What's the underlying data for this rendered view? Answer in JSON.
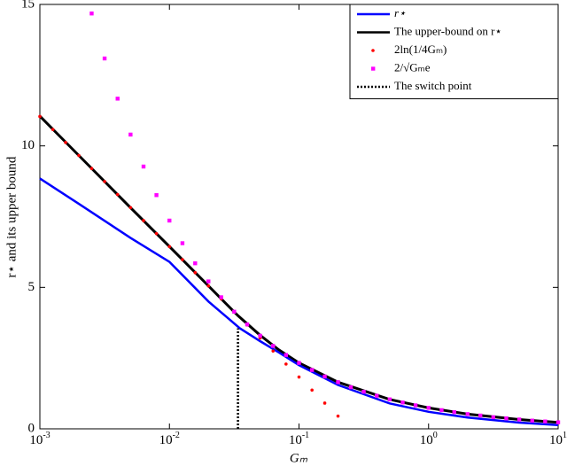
{
  "chart_data": {
    "type": "line",
    "xlabel": "Gₘ",
    "ylabel": "r⋆ and its upper bound",
    "xscale": "log",
    "xlim": [
      0.001,
      10
    ],
    "ylim": [
      0,
      15
    ],
    "xticks": [
      {
        "value": 0.001,
        "label": "10^-3"
      },
      {
        "value": 0.01,
        "label": "10^-2"
      },
      {
        "value": 0.1,
        "label": "10^-1"
      },
      {
        "value": 1,
        "label": "10^0"
      },
      {
        "value": 10,
        "label": "10^1"
      }
    ],
    "yticks": [
      0,
      5,
      10,
      15
    ],
    "legend": "upper right",
    "series": [
      {
        "name": "r⋆",
        "color": "#0000ff",
        "style": "line",
        "x": [
          0.001,
          0.002,
          0.005,
          0.01,
          0.02,
          0.035,
          0.05,
          0.07,
          0.1,
          0.2,
          0.5,
          1,
          2,
          5,
          10
        ],
        "values": [
          8.85,
          7.95,
          6.75,
          5.9,
          4.5,
          3.55,
          3.1,
          2.7,
          2.25,
          1.55,
          0.9,
          0.6,
          0.4,
          0.22,
          0.13
        ]
      },
      {
        "name": "The upper-bound on r⋆",
        "color": "#000000",
        "style": "line",
        "x": [
          0.001,
          0.002,
          0.005,
          0.01,
          0.02,
          0.0338,
          0.05,
          0.07,
          0.1,
          0.2,
          0.5,
          1,
          2,
          5,
          10
        ],
        "values": [
          11.05,
          9.66,
          7.82,
          6.44,
          5.05,
          4.0,
          3.31,
          2.79,
          2.33,
          1.65,
          1.04,
          0.74,
          0.52,
          0.33,
          0.23
        ]
      },
      {
        "name": "2ln(1/4Gₘ)",
        "color": "#ff0000",
        "style": "dots",
        "x": [
          0.001,
          0.00126,
          0.00158,
          0.002,
          0.00251,
          0.00316,
          0.00398,
          0.00501,
          0.00631,
          0.00794,
          0.01,
          0.0126,
          0.0158,
          0.02,
          0.0251,
          0.0316,
          0.0398,
          0.0501,
          0.0631,
          0.0794,
          0.1,
          0.126,
          0.158,
          0.2
        ],
        "values": [
          11.04,
          10.58,
          10.12,
          9.66,
          9.2,
          8.74,
          8.28,
          7.82,
          7.36,
          6.9,
          6.44,
          5.98,
          5.52,
          5.05,
          4.59,
          4.13,
          3.67,
          3.21,
          2.75,
          2.29,
          1.83,
          1.37,
          0.91,
          0.45
        ]
      },
      {
        "name": "2/√Gₘe",
        "color": "#ff00ff",
        "style": "squares",
        "x": [
          0.00251,
          0.00316,
          0.00398,
          0.00501,
          0.00631,
          0.00794,
          0.01,
          0.0126,
          0.0158,
          0.02,
          0.0251,
          0.0316,
          0.0398,
          0.0501,
          0.0631,
          0.0794,
          0.1,
          0.126,
          0.158,
          0.2,
          0.251,
          0.316,
          0.398,
          0.501,
          0.631,
          0.794,
          1,
          1.26,
          1.58,
          2,
          2.51,
          3.16,
          3.98,
          5.01,
          6.31,
          7.94,
          10
        ],
        "values": [
          14.68,
          13.09,
          11.67,
          10.4,
          9.27,
          8.26,
          7.36,
          6.56,
          5.85,
          5.21,
          4.65,
          4.14,
          3.69,
          3.29,
          2.93,
          2.61,
          2.33,
          2.08,
          1.85,
          1.65,
          1.47,
          1.31,
          1.17,
          1.04,
          0.93,
          0.83,
          0.74,
          0.66,
          0.59,
          0.52,
          0.47,
          0.41,
          0.37,
          0.33,
          0.29,
          0.26,
          0.23
        ]
      },
      {
        "name": "The switch point",
        "color": "#000000",
        "style": "dotted",
        "x": [
          0.0338,
          0.0338
        ],
        "values": [
          0,
          3.55
        ]
      }
    ]
  }
}
